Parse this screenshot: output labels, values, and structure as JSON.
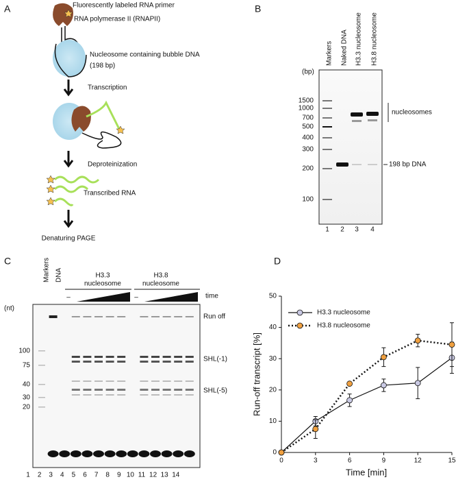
{
  "panel_a": {
    "letter": "A",
    "primer": "Fluorescently labeled RNA primer",
    "polymerase": "RNA polymerase II (RNAPII)",
    "nucleosome": "Nucleosome containing bubble DNA",
    "length": "(198 bp)",
    "step1": "Transcription",
    "step2": "Deproteinization",
    "rna": "Transcribed RNA",
    "step3": "Denaturing PAGE"
  },
  "panel_b": {
    "letter": "B",
    "unit": "(bp)",
    "lane_headers": [
      "Markers",
      "Naked DNA",
      "H3.3 nucleosome",
      "H3.8 nucleosome"
    ],
    "marker_labels": [
      "1500",
      "1000",
      "700",
      "500",
      "400",
      "300",
      "200",
      "100"
    ],
    "lane_numbers": [
      "1",
      "2",
      "3",
      "4"
    ],
    "nucleosomes": "nucleosomes",
    "dna": "198 bp DNA"
  },
  "panel_c": {
    "letter": "C",
    "markers": "Markers",
    "dna": "DNA",
    "group1": [
      "H3.3",
      "nucleosome"
    ],
    "group2": [
      "H3.8",
      "nucleosome"
    ],
    "dash": "–",
    "time": "time",
    "unit": "(nt)",
    "marker_labels": [
      "100",
      "75",
      "40",
      "30",
      "20"
    ],
    "run_off": "Run off",
    "shl1": "SHL(-1)",
    "shl5": "SHL(-5)",
    "lane_numbers": [
      "1",
      "2",
      "3",
      "4",
      "5",
      "6",
      "7",
      "8",
      "9",
      "10",
      "11",
      "12",
      "13",
      "14"
    ]
  },
  "chart_data": {
    "type": "line",
    "letter": "D",
    "xlabel": "Time  [min]",
    "ylabel": "Run-off transcript [%]",
    "x": [
      0,
      3,
      6,
      9,
      12,
      15
    ],
    "xlim": [
      0,
      15
    ],
    "xticks": [
      0,
      3,
      6,
      9,
      12,
      15
    ],
    "ylim": [
      0,
      50
    ],
    "yticks": [
      0,
      10,
      20,
      30,
      40,
      50
    ],
    "legend": "upper left",
    "series": [
      {
        "name": "H3.3 nucleosome",
        "color": "#c9c9e3",
        "line_style": "solid",
        "values": [
          0,
          10,
          16.7,
          21.5,
          22.2,
          30.3
        ],
        "errors": [
          0,
          1.5,
          2,
          2,
          5,
          5
        ]
      },
      {
        "name": "H3.8 nucleosome",
        "color": "#f0a040",
        "line_style": "dotted",
        "values": [
          0,
          7.5,
          22,
          30.5,
          35.8,
          34.5
        ],
        "errors": [
          0,
          3,
          0.5,
          3,
          2,
          7
        ]
      }
    ]
  }
}
